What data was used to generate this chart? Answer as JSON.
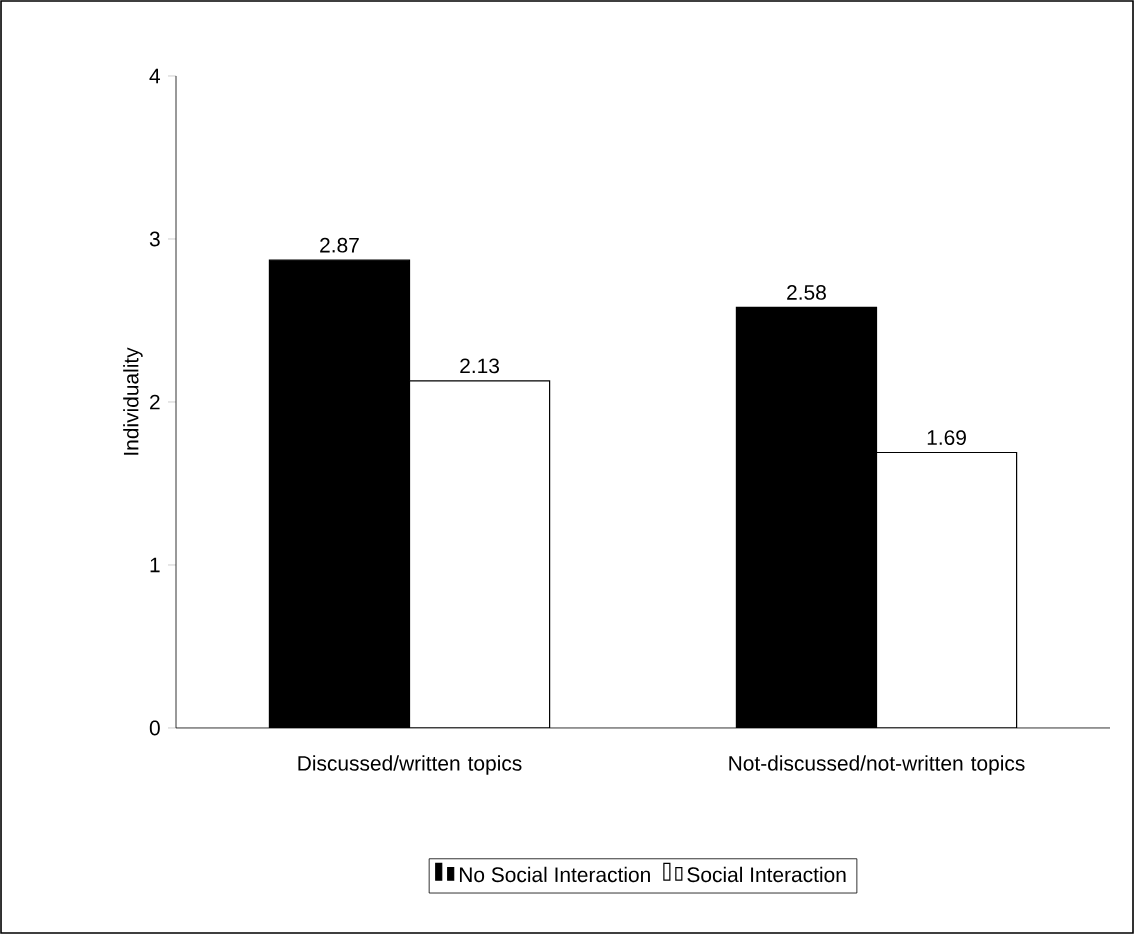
{
  "chart_data": {
    "type": "bar",
    "ylabel": "Individuality",
    "categories": [
      "Discussed/written topics",
      "Not-discussed/not-written topics"
    ],
    "series": [
      {
        "name": "No Social Interaction",
        "color": "#000000",
        "values": [
          2.87,
          2.58
        ]
      },
      {
        "name": "Social Interaction",
        "color": "#ffffff",
        "values": [
          2.13,
          1.69
        ]
      }
    ],
    "ylim": [
      0,
      4
    ],
    "yticks": [
      0,
      1,
      2,
      3,
      4
    ],
    "data_labels": true,
    "grid": false,
    "legend": "bottom"
  }
}
